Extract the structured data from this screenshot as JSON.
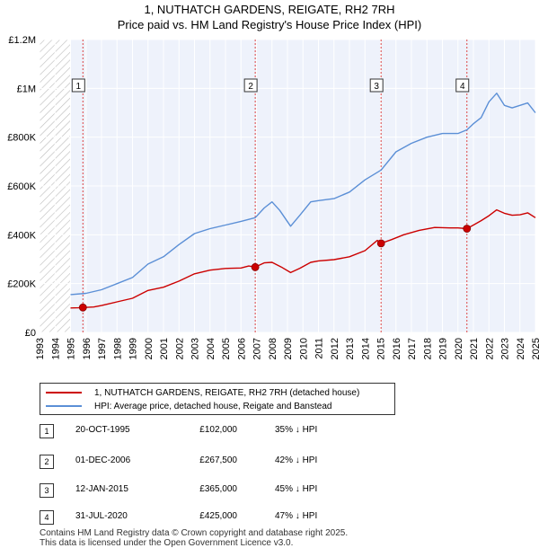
{
  "chart_data": {
    "type": "line",
    "title": "1, NUTHATCH GARDENS, REIGATE, RH2 7RH",
    "subtitle": "Price paid vs. HM Land Registry's House Price Index (HPI)",
    "xlim": [
      1993,
      2025
    ],
    "ylim": [
      0,
      1200000
    ],
    "y_ticks": [
      {
        "value": 0,
        "label": "£0"
      },
      {
        "value": 200000,
        "label": "£200K"
      },
      {
        "value": 400000,
        "label": "£400K"
      },
      {
        "value": 600000,
        "label": "£600K"
      },
      {
        "value": 800000,
        "label": "£800K"
      },
      {
        "value": 1000000,
        "label": "£1M"
      },
      {
        "value": 1200000,
        "label": "£1.2M"
      }
    ],
    "x_ticks": [
      "1993",
      "1994",
      "1995",
      "1996",
      "1997",
      "1998",
      "1999",
      "2000",
      "2001",
      "2002",
      "2003",
      "2004",
      "2005",
      "2006",
      "2007",
      "2008",
      "2009",
      "2010",
      "2011",
      "2012",
      "2013",
      "2014",
      "2015",
      "2016",
      "2017",
      "2018",
      "2019",
      "2020",
      "2021",
      "2022",
      "2023",
      "2024",
      "2025"
    ],
    "grid": true,
    "hatched_before": 1995.0,
    "series": [
      {
        "name": "1, NUTHATCH GARDENS, REIGATE, RH2 7RH (detached house)",
        "color": "#cc0000",
        "points": [
          [
            1995.0,
            100000
          ],
          [
            1995.5,
            101000
          ],
          [
            1995.8,
            102000
          ],
          [
            1996.5,
            104000
          ],
          [
            1997.0,
            110000
          ],
          [
            1998.0,
            125000
          ],
          [
            1999.0,
            140000
          ],
          [
            2000.0,
            172000
          ],
          [
            2001.0,
            185000
          ],
          [
            2002.0,
            210000
          ],
          [
            2003.0,
            240000
          ],
          [
            2004.0,
            255000
          ],
          [
            2005.0,
            262000
          ],
          [
            2006.0,
            264000
          ],
          [
            2006.5,
            272000
          ],
          [
            2006.92,
            267500
          ],
          [
            2007.5,
            285000
          ],
          [
            2008.0,
            287000
          ],
          [
            2008.6,
            268000
          ],
          [
            2009.2,
            245000
          ],
          [
            2009.8,
            263000
          ],
          [
            2010.5,
            287000
          ],
          [
            2011.0,
            293000
          ],
          [
            2012.0,
            298000
          ],
          [
            2013.0,
            310000
          ],
          [
            2014.0,
            335000
          ],
          [
            2014.8,
            377000
          ],
          [
            2015.04,
            365000
          ],
          [
            2015.7,
            380000
          ],
          [
            2016.5,
            400000
          ],
          [
            2017.5,
            418000
          ],
          [
            2018.5,
            430000
          ],
          [
            2019.5,
            428000
          ],
          [
            2020.0,
            428000
          ],
          [
            2020.58,
            425000
          ],
          [
            2021.0,
            440000
          ],
          [
            2021.5,
            458000
          ],
          [
            2022.0,
            478000
          ],
          [
            2022.5,
            502000
          ],
          [
            2023.0,
            488000
          ],
          [
            2023.5,
            480000
          ],
          [
            2024.0,
            482000
          ],
          [
            2024.5,
            490000
          ],
          [
            2025.0,
            470000
          ]
        ]
      },
      {
        "name": "HPI: Average price, detached house, Reigate and Banstead",
        "color": "#5b8fd6",
        "points": [
          [
            1995.0,
            155000
          ],
          [
            1996.0,
            160000
          ],
          [
            1997.0,
            175000
          ],
          [
            1998.0,
            200000
          ],
          [
            1999.0,
            225000
          ],
          [
            2000.0,
            280000
          ],
          [
            2001.0,
            310000
          ],
          [
            2002.0,
            360000
          ],
          [
            2003.0,
            405000
          ],
          [
            2004.0,
            425000
          ],
          [
            2005.0,
            440000
          ],
          [
            2006.0,
            455000
          ],
          [
            2006.92,
            470000
          ],
          [
            2007.5,
            510000
          ],
          [
            2008.0,
            535000
          ],
          [
            2008.5,
            500000
          ],
          [
            2009.2,
            435000
          ],
          [
            2009.8,
            480000
          ],
          [
            2010.5,
            535000
          ],
          [
            2011.0,
            540000
          ],
          [
            2012.0,
            548000
          ],
          [
            2013.0,
            575000
          ],
          [
            2014.0,
            625000
          ],
          [
            2015.04,
            665000
          ],
          [
            2016.0,
            740000
          ],
          [
            2017.0,
            775000
          ],
          [
            2018.0,
            800000
          ],
          [
            2019.0,
            815000
          ],
          [
            2020.0,
            815000
          ],
          [
            2020.58,
            830000
          ],
          [
            2021.0,
            855000
          ],
          [
            2021.5,
            880000
          ],
          [
            2022.0,
            945000
          ],
          [
            2022.5,
            980000
          ],
          [
            2023.0,
            930000
          ],
          [
            2023.5,
            920000
          ],
          [
            2024.0,
            930000
          ],
          [
            2024.5,
            940000
          ],
          [
            2025.0,
            900000
          ]
        ]
      }
    ],
    "sales": [
      {
        "num": "1",
        "x": 1995.8,
        "price": 102000
      },
      {
        "num": "2",
        "x": 2006.92,
        "price": 267500
      },
      {
        "num": "3",
        "x": 2015.04,
        "price": 365000
      },
      {
        "num": "4",
        "x": 2020.58,
        "price": 425000
      }
    ]
  },
  "legend": {
    "property": "1, NUTHATCH GARDENS, REIGATE, RH2 7RH (detached house)",
    "hpi": "HPI: Average price, detached house, Reigate and Banstead"
  },
  "sales_table": [
    {
      "num": "1",
      "date": "20-OCT-1995",
      "price": "£102,000",
      "hpi": "35% ↓ HPI"
    },
    {
      "num": "2",
      "date": "01-DEC-2006",
      "price": "£267,500",
      "hpi": "42% ↓ HPI"
    },
    {
      "num": "3",
      "date": "12-JAN-2015",
      "price": "£365,000",
      "hpi": "45% ↓ HPI"
    },
    {
      "num": "4",
      "date": "31-JUL-2020",
      "price": "£425,000",
      "hpi": "47% ↓ HPI"
    }
  ],
  "footer": {
    "line1": "Contains HM Land Registry data © Crown copyright and database right 2025.",
    "line2": "This data is licensed under the Open Government Licence v3.0."
  }
}
